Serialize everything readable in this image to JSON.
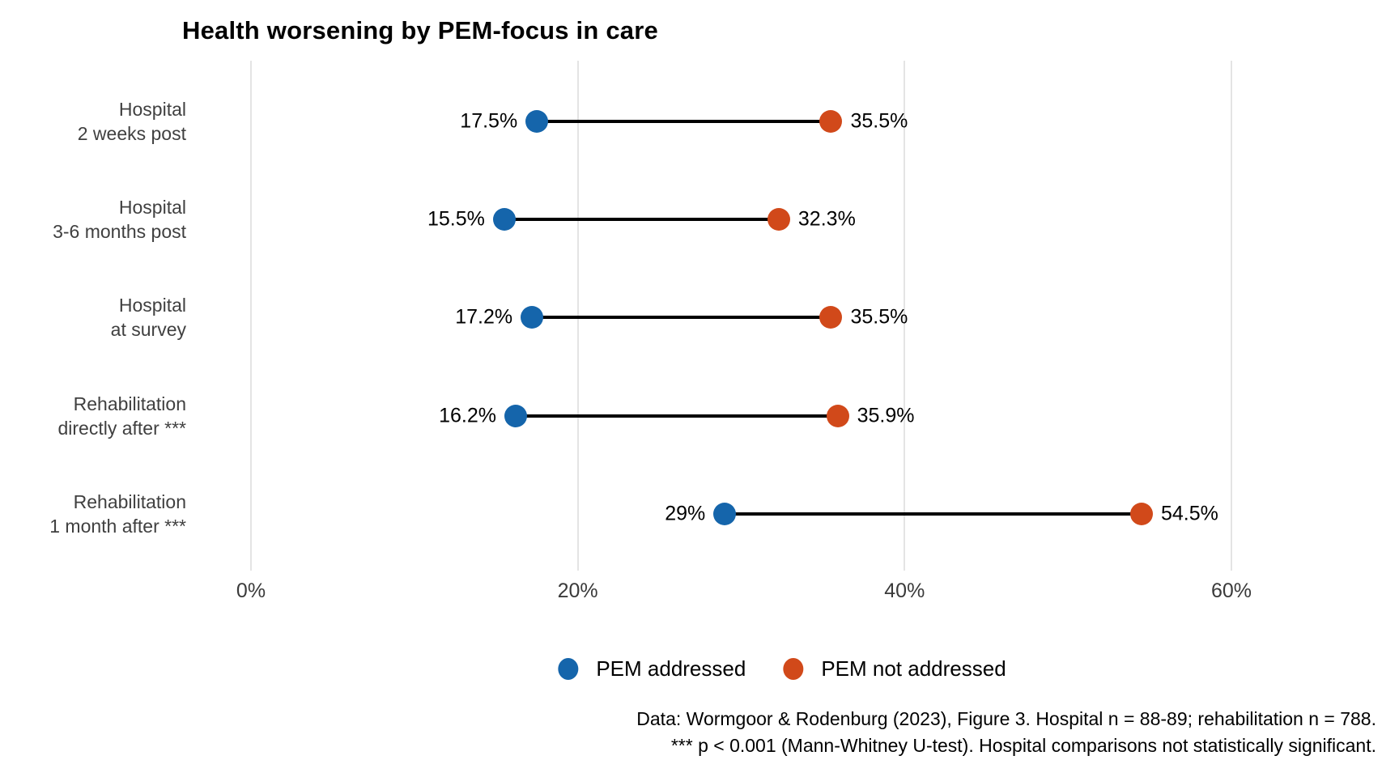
{
  "title": "Health worsening by PEM-focus in care",
  "chart_data": {
    "type": "scatter",
    "variant": "dumbbell",
    "orientation": "horizontal",
    "title": "Health worsening by PEM-focus in care",
    "categories": [
      [
        "Hospital",
        "2 weeks post"
      ],
      [
        "Hospital",
        "3-6 months post"
      ],
      [
        "Hospital",
        "at survey"
      ],
      [
        "Rehabilitation",
        "directly after ***"
      ],
      [
        "Rehabilitation",
        "1 month after ***"
      ]
    ],
    "series": [
      {
        "name": "PEM addressed",
        "color": "#1565ab",
        "values": [
          17.5,
          15.5,
          17.2,
          16.2,
          29
        ],
        "labels": [
          "17.5%",
          "15.5%",
          "17.2%",
          "16.2%",
          "29%"
        ]
      },
      {
        "name": "PEM not addressed",
        "color": "#d1491a",
        "values": [
          35.5,
          32.3,
          35.5,
          35.9,
          54.5
        ],
        "labels": [
          "35.5%",
          "32.3%",
          "35.5%",
          "35.9%",
          "54.5%"
        ]
      }
    ],
    "x_axis": {
      "range": [
        0,
        60
      ],
      "ticks": [
        0,
        20,
        40,
        60
      ],
      "tick_labels": [
        "0%",
        "20%",
        "40%",
        "60%"
      ],
      "grid": true
    },
    "connector_color": "#000000",
    "legend_position": "bottom"
  },
  "colors": {
    "pem_addressed": "#1565ab",
    "pem_not_addressed": "#d1491a",
    "grid": "#e4e4e4",
    "category_label": "#404040"
  },
  "caption": {
    "line1": "Data: Wormgoor & Rodenburg (2023), Figure 3. Hospital n = 88-89; rehabilitation n = 788.",
    "line2": "*** p < 0.001 (Mann-Whitney U-test). Hospital comparisons not statistically significant."
  }
}
